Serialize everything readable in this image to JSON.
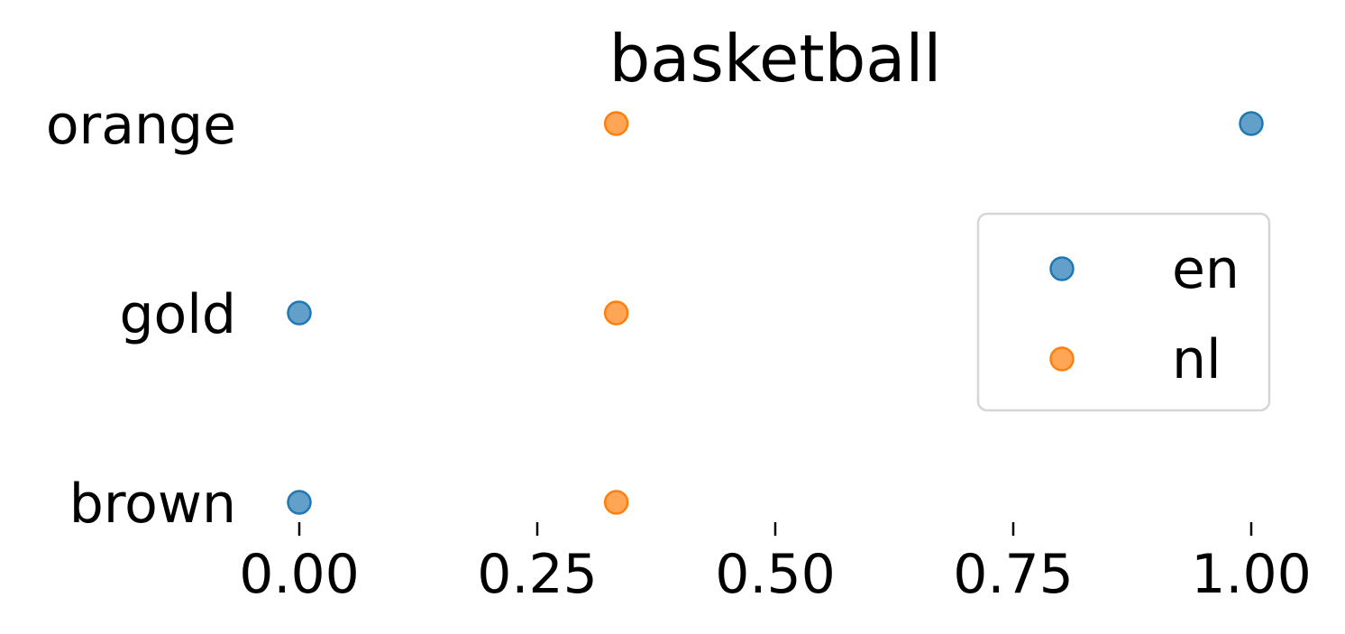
{
  "chart_data": {
    "type": "scatter",
    "title": "basketball",
    "xlabel": "",
    "ylabel": "",
    "xlim": [
      0,
      1
    ],
    "x_ticks": [
      "0.00",
      "0.25",
      "0.50",
      "0.75",
      "1.00"
    ],
    "x_tick_values": [
      0,
      0.25,
      0.5,
      0.75,
      1
    ],
    "categories": [
      "orange",
      "gold",
      "brown"
    ],
    "grid": false,
    "legend_position": "right",
    "series": [
      {
        "name": "en",
        "color": "#1f77b4",
        "points": [
          {
            "category": "orange",
            "x": 1.0
          },
          {
            "category": "gold",
            "x": 0.0
          },
          {
            "category": "brown",
            "x": 0.0
          }
        ]
      },
      {
        "name": "nl",
        "color": "#ff7f0e",
        "points": [
          {
            "category": "orange",
            "x": 0.333
          },
          {
            "category": "gold",
            "x": 0.333
          },
          {
            "category": "brown",
            "x": 0.333
          }
        ]
      }
    ]
  }
}
